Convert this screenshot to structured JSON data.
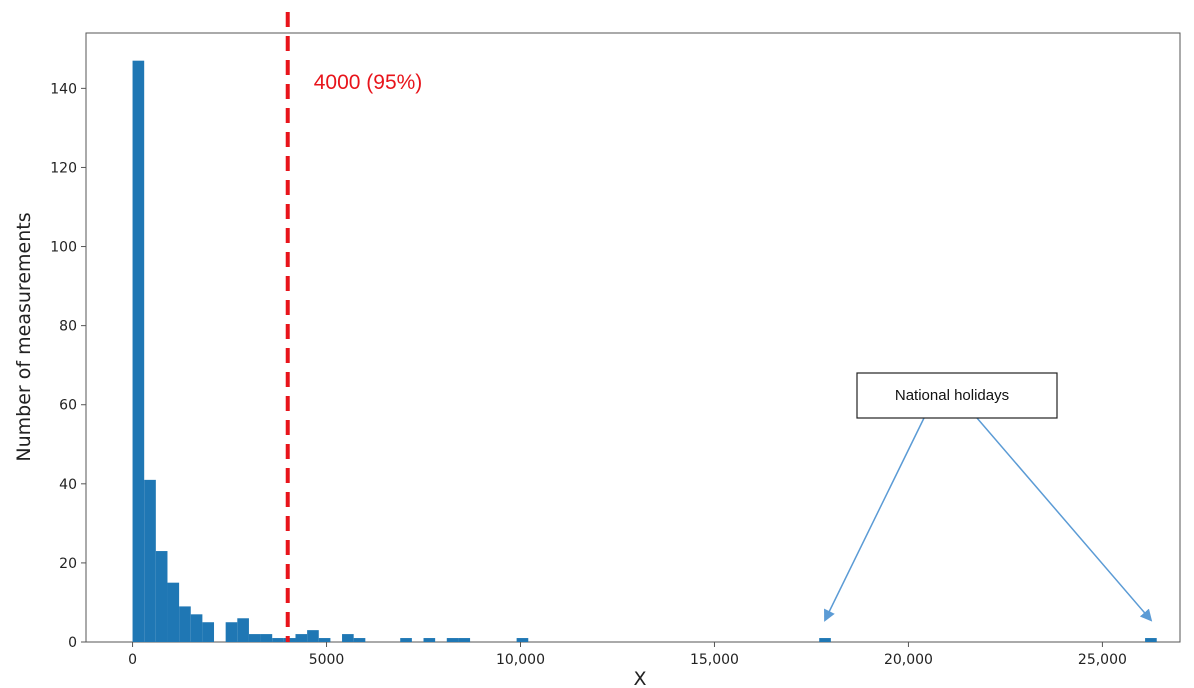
{
  "chart_data": {
    "type": "bar",
    "xlabel": "X",
    "ylabel": "Number of measurements",
    "xlim": [
      -1200,
      27000
    ],
    "ylim": [
      0,
      154
    ],
    "bin_width": 300,
    "bar_color": "#1f77b4",
    "x_ticks": [
      {
        "value": 0,
        "label": "0"
      },
      {
        "value": 5000,
        "label": "5000"
      },
      {
        "value": 10000,
        "label": "10,000"
      },
      {
        "value": 15000,
        "label": "15,000"
      },
      {
        "value": 20000,
        "label": "20,000"
      },
      {
        "value": 25000,
        "label": "25,000"
      }
    ],
    "y_ticks": [
      {
        "value": 0,
        "label": "0"
      },
      {
        "value": 20,
        "label": "20"
      },
      {
        "value": 40,
        "label": "40"
      },
      {
        "value": 60,
        "label": "60"
      },
      {
        "value": 80,
        "label": "80"
      },
      {
        "value": 100,
        "label": "100"
      },
      {
        "value": 120,
        "label": "120"
      },
      {
        "value": 140,
        "label": "140"
      }
    ],
    "bins": [
      {
        "x": 0,
        "count": 147
      },
      {
        "x": 300,
        "count": 41
      },
      {
        "x": 600,
        "count": 23
      },
      {
        "x": 900,
        "count": 15
      },
      {
        "x": 1200,
        "count": 9
      },
      {
        "x": 1500,
        "count": 7
      },
      {
        "x": 1800,
        "count": 5
      },
      {
        "x": 2100,
        "count": 0
      },
      {
        "x": 2400,
        "count": 5
      },
      {
        "x": 2700,
        "count": 6
      },
      {
        "x": 3000,
        "count": 2
      },
      {
        "x": 3300,
        "count": 2
      },
      {
        "x": 3600,
        "count": 1
      },
      {
        "x": 3900,
        "count": 1
      },
      {
        "x": 4200,
        "count": 2
      },
      {
        "x": 4500,
        "count": 3
      },
      {
        "x": 4800,
        "count": 1
      },
      {
        "x": 5100,
        "count": 0
      },
      {
        "x": 5400,
        "count": 2
      },
      {
        "x": 5700,
        "count": 1
      },
      {
        "x": 6000,
        "count": 0
      },
      {
        "x": 6300,
        "count": 0
      },
      {
        "x": 6600,
        "count": 0
      },
      {
        "x": 6900,
        "count": 1
      },
      {
        "x": 7200,
        "count": 0
      },
      {
        "x": 7500,
        "count": 1
      },
      {
        "x": 7800,
        "count": 0
      },
      {
        "x": 8100,
        "count": 1
      },
      {
        "x": 8400,
        "count": 1
      },
      {
        "x": 8700,
        "count": 0
      },
      {
        "x": 9000,
        "count": 0
      },
      {
        "x": 9300,
        "count": 0
      },
      {
        "x": 9600,
        "count": 0
      },
      {
        "x": 9900,
        "count": 1
      },
      {
        "x": 17700,
        "count": 1
      },
      {
        "x": 26100,
        "count": 1
      }
    ],
    "threshold": {
      "x": 4000,
      "label": "4000 (95%)",
      "color": "#e8141b"
    },
    "annotation": {
      "label": "National holidays",
      "targets": [
        {
          "x": 17850,
          "y": 3
        },
        {
          "x": 26250,
          "y": 3
        }
      ],
      "arrow_color": "#5b9bd5"
    }
  }
}
